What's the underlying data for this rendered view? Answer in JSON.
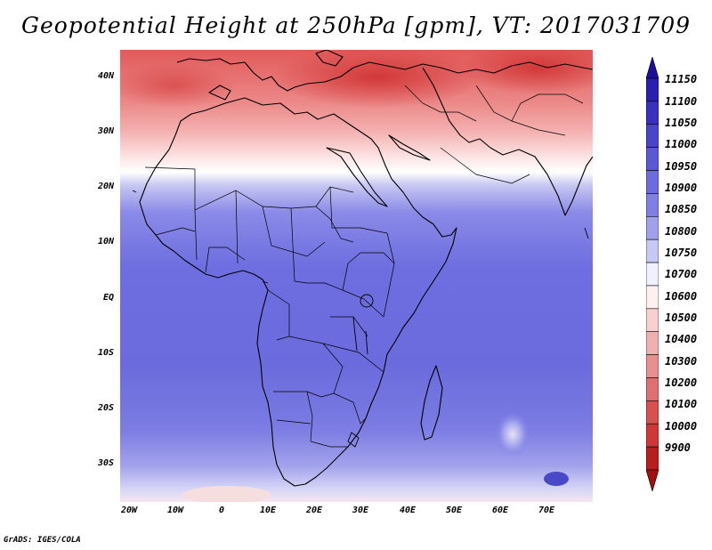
{
  "title": "Geopotential Height at 250hPa [gpm], VT: 2017031709",
  "footer": "GrADS: IGES/COLA",
  "map": {
    "lat_labels": [
      "40N",
      "30N",
      "20N",
      "10N",
      "EQ",
      "10S",
      "20S",
      "30S"
    ],
    "lon_labels": [
      "20W",
      "10W",
      "0",
      "10E",
      "20E",
      "30E",
      "40E",
      "50E",
      "60E",
      "70E"
    ]
  },
  "colorbar": {
    "labels": [
      "11150",
      "11100",
      "11050",
      "11000",
      "10950",
      "10900",
      "10850",
      "10800",
      "10750",
      "10700",
      "10600",
      "10500",
      "10400",
      "10300",
      "10200",
      "10100",
      "10000",
      "9900"
    ],
    "colors": [
      "#1b0f9c",
      "#2a1fb0",
      "#3a30c0",
      "#4a44cc",
      "#5a58d4",
      "#6c6cde",
      "#8080e4",
      "#a0a0ec",
      "#c8c8f4",
      "#f0f0ff",
      "#fff0f0",
      "#f8d0d0",
      "#f0b0b0",
      "#e89090",
      "#e07070",
      "#d85050",
      "#d03838",
      "#b81e1e",
      "#a01010"
    ]
  }
}
